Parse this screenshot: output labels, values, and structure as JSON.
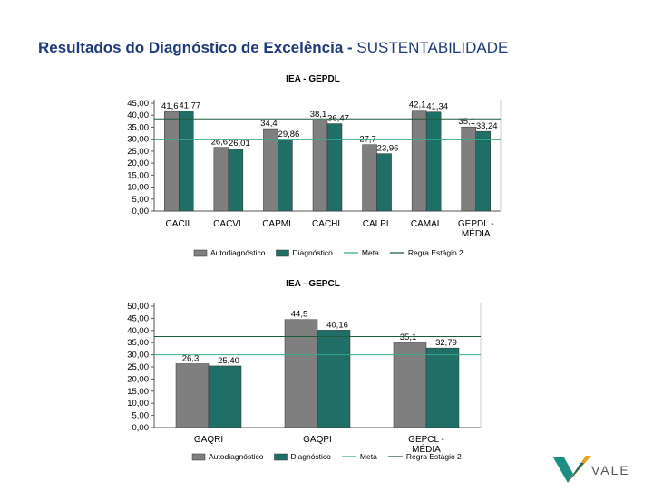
{
  "page": {
    "title_bold": "Resultados do Diagnóstico de Excelência - ",
    "title_rest": "SUSTENTABILIDADE"
  },
  "logo": {
    "text": "VALE",
    "icon": "vale-logo-icon"
  },
  "colors": {
    "autodiagnostico": "#7f7f7f",
    "diagnostico": "#1f6f66",
    "meta": "#3aaa8a",
    "regra": "#1f5a3a"
  },
  "chart_data": [
    {
      "type": "bar",
      "title": "IEA - GEPDL",
      "categories": [
        "CACIL",
        "CACVL",
        "CAPML",
        "CACHL",
        "CALPL",
        "CAMAL",
        "GEPDL - MÉDIA"
      ],
      "series": [
        {
          "name": "Autodiagnóstico",
          "values": [
            41.6,
            26.6,
            34.4,
            38.1,
            27.7,
            42.1,
            35.1
          ],
          "labels": [
            "41,6",
            "26,6",
            "34,4",
            "38,1",
            "27,7",
            "42,1",
            "35,1"
          ]
        },
        {
          "name": "Diagnóstico",
          "values": [
            41.77,
            26.01,
            29.86,
            36.47,
            23.96,
            41.34,
            33.24
          ],
          "labels": [
            "41,77",
            "26,01",
            "29,86",
            "36,47",
            "23,96",
            "41,34",
            "33,24"
          ]
        }
      ],
      "lines": [
        {
          "name": "Meta",
          "value": 30
        },
        {
          "name": "Regra Estágio 2",
          "value": 38.5
        }
      ],
      "ylim": [
        0,
        45
      ],
      "yticks": [
        "0,00",
        "5,00",
        "10,00",
        "15,00",
        "20,00",
        "25,00",
        "30,00",
        "35,00",
        "40,00",
        "45,00"
      ],
      "legend": [
        "Autodiagnóstico",
        "Diagnóstico",
        "Meta",
        "Regra Estágio 2"
      ],
      "legend_position": "bottom"
    },
    {
      "type": "bar",
      "title": "IEA - GEPCL",
      "categories": [
        "GAQRI",
        "GAQPI",
        "GEPCL - MÉDIA"
      ],
      "series": [
        {
          "name": "Autodiagnóstico",
          "values": [
            26.3,
            44.5,
            35.1
          ],
          "labels": [
            "26,3",
            "44,5",
            "35,1"
          ]
        },
        {
          "name": "Diagnóstico",
          "values": [
            25.4,
            40.16,
            32.79
          ],
          "labels": [
            "25,40",
            "40,16",
            "32,79"
          ]
        }
      ],
      "lines": [
        {
          "name": "Meta",
          "value": 30
        },
        {
          "name": "Regra Estágio 2",
          "value": 37.5
        }
      ],
      "ylim": [
        0,
        50
      ],
      "yticks": [
        "0,00",
        "5,00",
        "10,00",
        "15,00",
        "20,00",
        "25,00",
        "30,00",
        "35,00",
        "40,00",
        "45,00",
        "50,00"
      ],
      "legend": [
        "Autodiagnóstico",
        "Diagnóstico",
        "Meta",
        "Regra Estágio 2"
      ],
      "legend_position": "bottom"
    }
  ]
}
